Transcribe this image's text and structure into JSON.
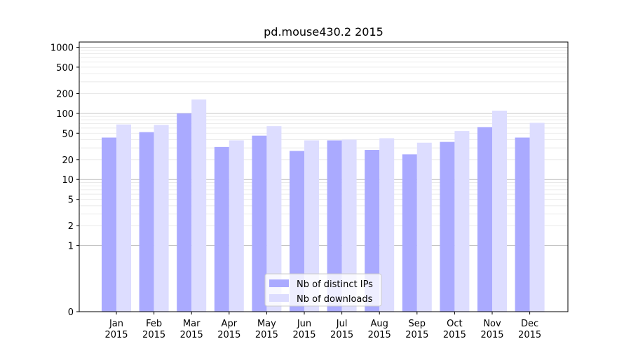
{
  "chart_data": {
    "type": "bar",
    "title": "pd.mouse430.2 2015",
    "xlabel": "",
    "ylabel": "",
    "scale": "symlog",
    "categories": [
      "Jan\n2015",
      "Feb\n2015",
      "Mar\n2015",
      "Apr\n2015",
      "May\n2015",
      "Jun\n2015",
      "Jul\n2015",
      "Aug\n2015",
      "Sep\n2015",
      "Oct\n2015",
      "Nov\n2015",
      "Dec\n2015"
    ],
    "series": [
      {
        "name": "Nb of distinct IPs",
        "color": "#aaaaff",
        "values": [
          43,
          52,
          100,
          31,
          46,
          27,
          39,
          28,
          24,
          37,
          62,
          43
        ]
      },
      {
        "name": "Nb of downloads",
        "color": "#ddddff",
        "values": [
          68,
          67,
          162,
          39,
          64,
          39,
          40,
          42,
          36,
          54,
          110,
          72
        ]
      }
    ],
    "yticks": [
      0,
      1,
      2,
      5,
      10,
      20,
      50,
      100,
      200,
      500,
      1000
    ],
    "ylim": [
      0,
      1200
    ],
    "grid": true,
    "legend_position": "bottom-center"
  }
}
